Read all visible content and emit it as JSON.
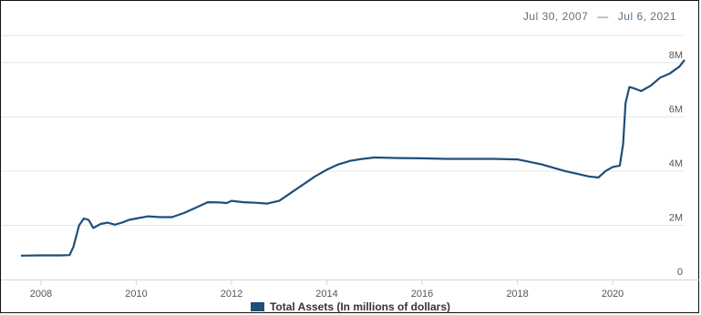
{
  "date_range": {
    "start": "Jul 30, 2007",
    "separator": "—",
    "end": "Jul 6, 2021"
  },
  "colors": {
    "series": "#1f4e79",
    "grid": "#e6e6e6",
    "axis": "#ccd6eb"
  },
  "chart_data": {
    "type": "line",
    "title": "",
    "xlabel": "",
    "ylabel": "",
    "x_range": [
      2007.58,
      2021.51
    ],
    "ylim": [
      0,
      9000000
    ],
    "x_ticks": [
      2008,
      2010,
      2012,
      2014,
      2016,
      2018,
      2020
    ],
    "x_tick_labels": [
      "2008",
      "2010",
      "2012",
      "2014",
      "2016",
      "2018",
      "2020"
    ],
    "y_ticks": [
      0,
      2000000,
      4000000,
      6000000,
      8000000
    ],
    "y_tick_labels": [
      "0",
      "2M",
      "4M",
      "6M",
      "8M"
    ],
    "grid": true,
    "legend_position": "bottom",
    "series": [
      {
        "name": "Total Assets (In millions of dollars)",
        "x": [
          2007.58,
          2008.0,
          2008.4,
          2008.6,
          2008.68,
          2008.8,
          2008.9,
          2009.0,
          2009.1,
          2009.25,
          2009.4,
          2009.55,
          2009.7,
          2009.85,
          2010.0,
          2010.25,
          2010.5,
          2010.75,
          2011.0,
          2011.25,
          2011.5,
          2011.75,
          2011.9,
          2012.0,
          2012.25,
          2012.5,
          2012.75,
          2013.0,
          2013.25,
          2013.5,
          2013.75,
          2014.0,
          2014.25,
          2014.5,
          2014.75,
          2015.0,
          2015.5,
          2016.0,
          2016.5,
          2017.0,
          2017.5,
          2018.0,
          2018.5,
          2019.0,
          2019.5,
          2019.7,
          2019.85,
          2020.0,
          2020.15,
          2020.22,
          2020.27,
          2020.35,
          2020.45,
          2020.6,
          2020.8,
          2021.0,
          2021.2,
          2021.4,
          2021.51
        ],
        "y": [
          880000,
          890000,
          890000,
          900000,
          1200000,
          2000000,
          2250000,
          2200000,
          1900000,
          2050000,
          2100000,
          2020000,
          2100000,
          2200000,
          2250000,
          2330000,
          2300000,
          2300000,
          2450000,
          2650000,
          2850000,
          2840000,
          2820000,
          2900000,
          2850000,
          2830000,
          2800000,
          2900000,
          3200000,
          3500000,
          3800000,
          4050000,
          4250000,
          4380000,
          4450000,
          4500000,
          4480000,
          4470000,
          4450000,
          4450000,
          4450000,
          4430000,
          4250000,
          4000000,
          3800000,
          3760000,
          4000000,
          4150000,
          4200000,
          5000000,
          6500000,
          7100000,
          7050000,
          6950000,
          7150000,
          7450000,
          7600000,
          7850000,
          8100000
        ]
      }
    ]
  }
}
